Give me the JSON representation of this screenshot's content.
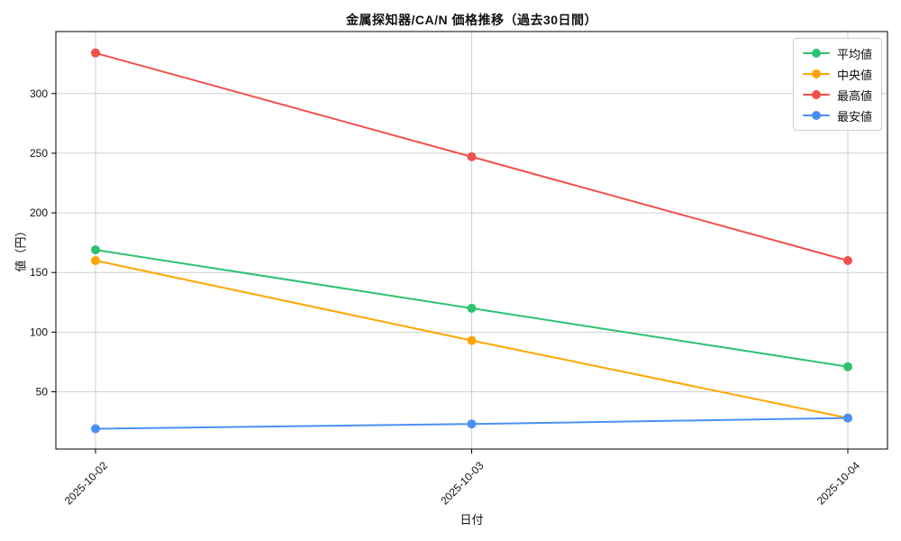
{
  "chart_data": {
    "type": "line",
    "title": "金属探知器/CA/N 価格推移（過去30日間）",
    "xlabel": "日付",
    "ylabel": "値（円）",
    "categories": [
      "2025-10-02",
      "2025-10-03",
      "2025-10-04"
    ],
    "series": [
      {
        "name": "平均値",
        "color": "#2dc26f",
        "values": [
          169,
          120,
          71
        ]
      },
      {
        "name": "中央値",
        "color": "#ffa500",
        "values": [
          160,
          93,
          28
        ]
      },
      {
        "name": "最高値",
        "color": "#f2504b",
        "values": [
          334,
          247,
          160
        ]
      },
      {
        "name": "最安値",
        "color": "#4a90f4",
        "values": [
          19,
          23,
          28
        ]
      }
    ],
    "yticks": [
      50,
      100,
      150,
      200,
      250,
      300
    ],
    "ylim": [
      2,
      352
    ],
    "grid": true,
    "grid_color": "#cfcfcf",
    "spine_color": "#000000",
    "legend_position": "upper right",
    "x_tick_rotation": 45,
    "marker": "circle",
    "line_width": 2
  }
}
